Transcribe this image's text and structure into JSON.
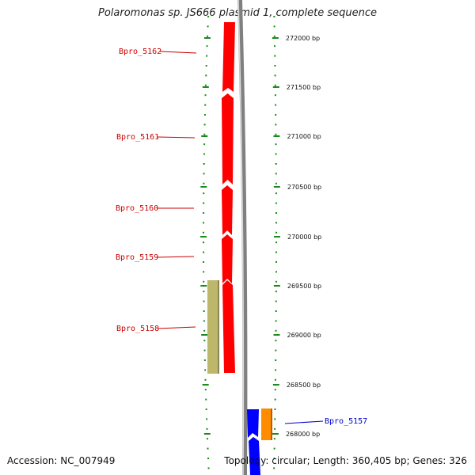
{
  "title": "Polaromonas sp. JS666 plasmid 1, complete sequence",
  "footer": {
    "accession": "Accession: NC_007949",
    "stats": "Topology: circular; Length: 360,405 bp; Genes: 326"
  },
  "colors": {
    "background": "#ffffff",
    "backbone": "#808080",
    "tick": "#1a8a1a",
    "gene_red": "#ff0000",
    "gene_olive": "#bdb76b",
    "gene_blue": "#0000ff",
    "gene_orange": "#ff8c00",
    "label_red": "#cc0000",
    "label_blue": "#0000cc"
  },
  "scale_labels": [
    "272000 bp",
    "271500 bp",
    "271000 bp",
    "270500 bp",
    "270000 bp",
    "269500 bp",
    "269000 bp",
    "268500 bp",
    "268000 bp"
  ],
  "genes": [
    {
      "name": "Bpro_5162",
      "color_key": "gene_red",
      "label_color_key": "label_red"
    },
    {
      "name": "Bpro_5161",
      "color_key": "gene_red",
      "label_color_key": "label_red"
    },
    {
      "name": "Bpro_5160",
      "color_key": "gene_red",
      "label_color_key": "label_red"
    },
    {
      "name": "Bpro_5159",
      "color_key": "gene_red",
      "label_color_key": "label_red"
    },
    {
      "name": "Bpro_5158",
      "color_key": "gene_olive",
      "label_color_key": "label_red"
    },
    {
      "name": "Bpro_5157",
      "color_key": "gene_orange",
      "label_color_key": "label_blue"
    },
    {
      "name": "",
      "color_key": "gene_blue",
      "label_color_key": "label_blue"
    }
  ]
}
